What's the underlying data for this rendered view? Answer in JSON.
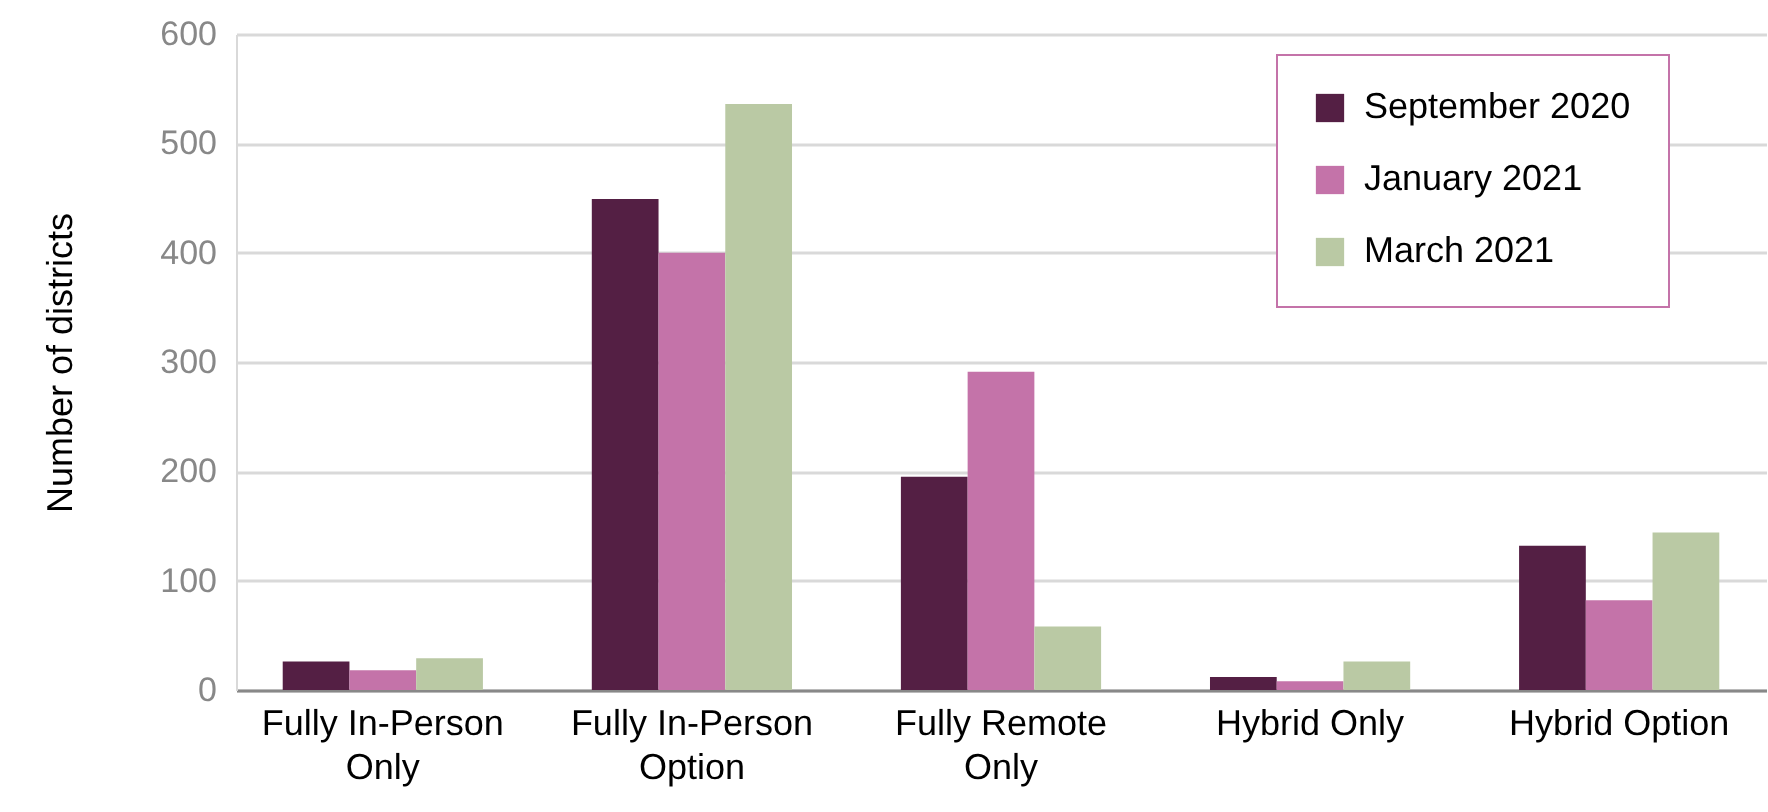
{
  "chart_data": {
    "type": "bar",
    "ylabel": "Number of districts",
    "categories": [
      "Fully In-Person Only",
      "Fully In-Person Option",
      "Fully Remote Only",
      "Hybrid Only",
      "Hybrid Option"
    ],
    "series": [
      {
        "name": "September 2020",
        "color": "#541f44",
        "values": [
          26,
          449,
          195,
          12,
          132
        ]
      },
      {
        "name": "January 2021",
        "color": "#c473a9",
        "values": [
          18,
          400,
          291,
          8,
          82
        ]
      },
      {
        "name": "March 2021",
        "color": "#bac9a4",
        "values": [
          29,
          536,
          58,
          26,
          144
        ]
      }
    ],
    "ylim": [
      0,
      600
    ],
    "yticks": [
      0,
      100,
      200,
      300,
      400,
      500,
      600
    ],
    "grid": "y",
    "legend": "top right"
  }
}
